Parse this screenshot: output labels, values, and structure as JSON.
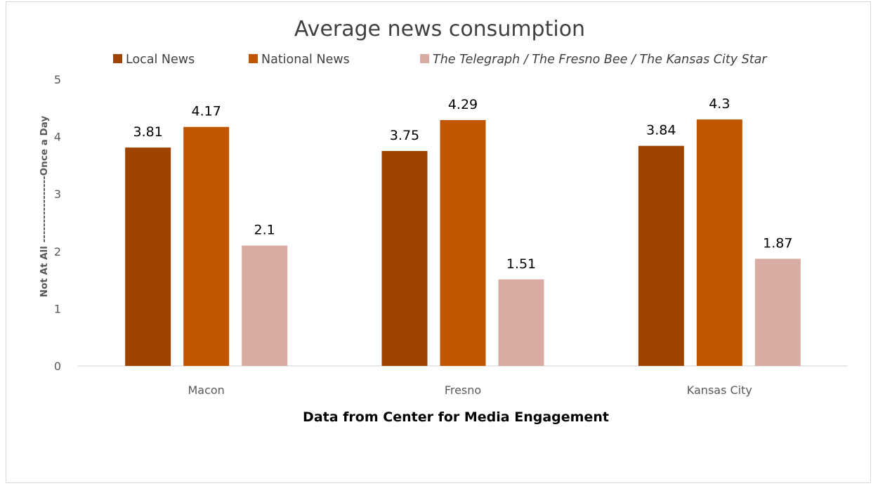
{
  "chart_data": {
    "type": "bar",
    "title": "Average news consumption",
    "xlabel": "Data from Center for Media Engagement",
    "ylabel": "Not At All -----------------Once a Day",
    "categories": [
      "Macon",
      "Fresno",
      "Kansas City"
    ],
    "series": [
      {
        "name": "Local News",
        "values": [
          3.81,
          3.75,
          3.84
        ],
        "color": "#9e4300",
        "italic": false
      },
      {
        "name": "National News",
        "values": [
          4.17,
          4.29,
          4.3
        ],
        "color": "#c05600",
        "italic": false
      },
      {
        "name": "The Telegraph / The Fresno Bee / The Kansas City Star",
        "values": [
          2.1,
          1.51,
          1.87
        ],
        "color": "#d9aca3",
        "italic": true
      }
    ],
    "value_labels": [
      [
        "3.81",
        "3.75",
        "3.84"
      ],
      [
        "4.17",
        "4.29",
        "4.3"
      ],
      [
        "2.1",
        "1.51",
        "1.87"
      ]
    ],
    "yticks": [
      "0",
      "1",
      "2",
      "3",
      "4",
      "5"
    ],
    "ylim": [
      0,
      5
    ],
    "grid": false,
    "legend": "top"
  }
}
